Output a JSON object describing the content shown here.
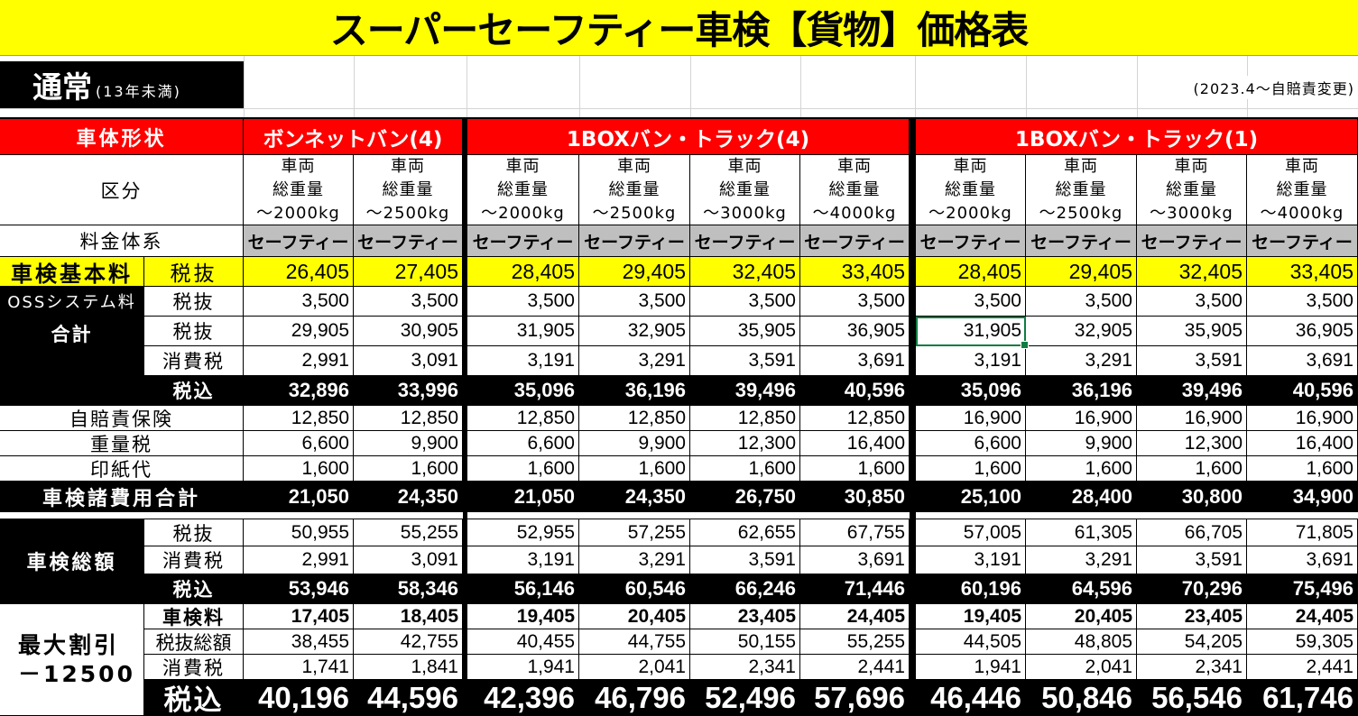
{
  "title": "スーパーセーフティー車検【貨物】価格表",
  "section": {
    "label": "通常",
    "note": "(13年未満)"
  },
  "notice": "(2023.4～自賠責変更)",
  "colors": {
    "title_bg": "#ffff00",
    "header_bg": "#ff0000",
    "highlight_bg": "#ffff00",
    "plan_bg": "#bfbfbf",
    "dark_bg": "#000000",
    "selection": "#107c41"
  },
  "header": {
    "label": "車体形状",
    "groups": [
      "ボンネットバン(4)",
      "1BOXバン・トラック(4)",
      "1BOXバン・トラック(1)"
    ]
  },
  "category": {
    "label": "区分",
    "line1": "車両",
    "line2": "総重量",
    "weights": [
      "～2000kg",
      "～2500kg",
      "～2000kg",
      "～2500kg",
      "～3000kg",
      "～4000kg",
      "～2000kg",
      "～2500kg",
      "～3000kg",
      "～4000kg"
    ]
  },
  "plan": {
    "label": "料金体系",
    "values": [
      "セーフティー",
      "セーフティー",
      "セーフティー",
      "セーフティー",
      "セーフティー",
      "セーフティー",
      "セーフティー",
      "セーフティー",
      "セーフティー",
      "セーフティー"
    ]
  },
  "rows": {
    "base": {
      "label": "車検基本料",
      "sub": "税抜",
      "values": [
        "26,405",
        "27,405",
        "28,405",
        "29,405",
        "32,405",
        "33,405",
        "28,405",
        "29,405",
        "32,405",
        "33,405"
      ]
    },
    "oss": {
      "label": "OSSシステム料",
      "sub": "税抜",
      "values": [
        "3,500",
        "3,500",
        "3,500",
        "3,500",
        "3,500",
        "3,500",
        "3,500",
        "3,500",
        "3,500",
        "3,500"
      ]
    },
    "total": {
      "label": "合計",
      "sub": "税抜",
      "values": [
        "29,905",
        "30,905",
        "31,905",
        "32,905",
        "35,905",
        "36,905",
        "31,905",
        "32,905",
        "35,905",
        "36,905"
      ]
    },
    "total_tax": {
      "sub": "消費税",
      "values": [
        "2,991",
        "3,091",
        "3,191",
        "3,291",
        "3,591",
        "3,691",
        "3,191",
        "3,291",
        "3,591",
        "3,691"
      ]
    },
    "total_incl": {
      "sub": "税込",
      "values": [
        "32,896",
        "33,996",
        "35,096",
        "36,196",
        "39,496",
        "40,596",
        "35,096",
        "36,196",
        "39,496",
        "40,596"
      ]
    },
    "jibaiseki": {
      "label": "自賠責保険",
      "values": [
        "12,850",
        "12,850",
        "12,850",
        "12,850",
        "12,850",
        "12,850",
        "16,900",
        "16,900",
        "16,900",
        "16,900"
      ]
    },
    "weight_tax": {
      "label": "重量税",
      "values": [
        "6,600",
        "9,900",
        "6,600",
        "9,900",
        "12,300",
        "16,400",
        "6,600",
        "9,900",
        "12,300",
        "16,400"
      ]
    },
    "stamp": {
      "label": "印紙代",
      "values": [
        "1,600",
        "1,600",
        "1,600",
        "1,600",
        "1,600",
        "1,600",
        "1,600",
        "1,600",
        "1,600",
        "1,600"
      ]
    },
    "fees_total": {
      "label": "車検諸費用合計",
      "values": [
        "21,050",
        "24,350",
        "21,050",
        "24,350",
        "26,750",
        "30,850",
        "25,100",
        "28,400",
        "30,800",
        "34,900"
      ]
    },
    "gross": {
      "label": "車検総額",
      "sub": "税抜",
      "values": [
        "50,955",
        "55,255",
        "52,955",
        "57,255",
        "62,655",
        "67,755",
        "57,005",
        "61,305",
        "66,705",
        "71,805"
      ]
    },
    "gross_tax": {
      "sub": "消費税",
      "values": [
        "2,991",
        "3,091",
        "3,191",
        "3,291",
        "3,591",
        "3,691",
        "3,191",
        "3,291",
        "3,591",
        "3,691"
      ]
    },
    "gross_incl": {
      "sub": "税込",
      "values": [
        "53,946",
        "58,346",
        "56,146",
        "60,546",
        "66,246",
        "71,446",
        "60,196",
        "64,596",
        "70,296",
        "75,496"
      ]
    },
    "discount_fee": {
      "label": "最大割引",
      "label2": "－12500",
      "sub": "車検料",
      "values": [
        "17,405",
        "18,405",
        "19,405",
        "20,405",
        "23,405",
        "24,405",
        "19,405",
        "20,405",
        "23,405",
        "24,405"
      ]
    },
    "discount_net": {
      "sub": "税抜総額",
      "values": [
        "38,455",
        "42,755",
        "40,455",
        "44,755",
        "50,155",
        "55,255",
        "44,505",
        "48,805",
        "54,205",
        "59,305"
      ]
    },
    "discount_tax": {
      "sub": "消費税",
      "values": [
        "1,741",
        "1,841",
        "1,941",
        "2,041",
        "2,341",
        "2,441",
        "1,941",
        "2,041",
        "2,341",
        "2,441"
      ]
    },
    "discount_incl": {
      "sub": "税込",
      "values": [
        "40,196",
        "44,596",
        "42,396",
        "46,796",
        "52,496",
        "57,696",
        "46,446",
        "50,846",
        "56,546",
        "61,746"
      ]
    }
  }
}
